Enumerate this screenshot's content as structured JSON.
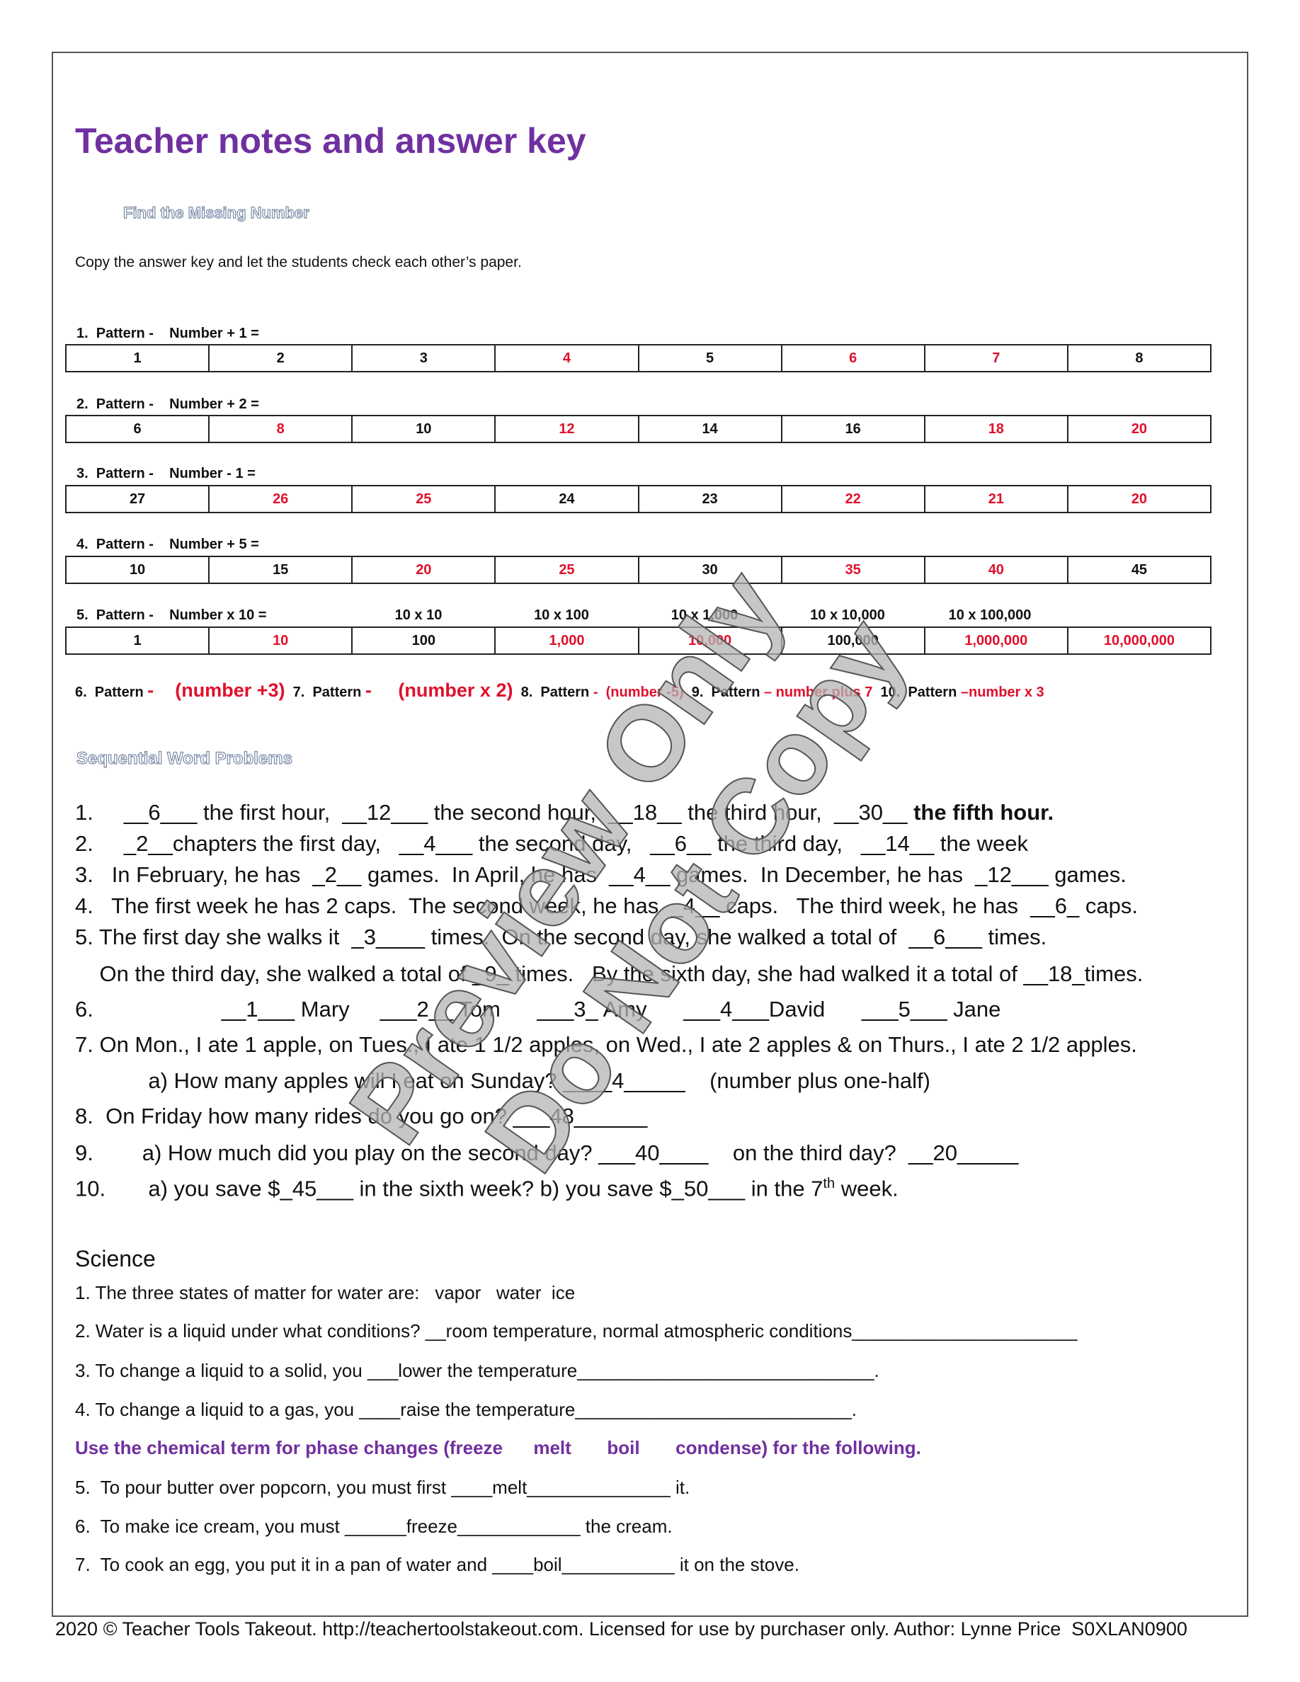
{
  "title": "Teacher notes and answer key",
  "subtitle": "Find the Missing Number",
  "instructions": "Copy the answer key and let the students check each other’s paper.",
  "patterns": [
    {
      "label": "1.  Pattern -    Number + 1 =",
      "cells": [
        {
          "v": "1"
        },
        {
          "v": "2"
        },
        {
          "v": "3"
        },
        {
          "v": "4",
          "red": true
        },
        {
          "v": "5"
        },
        {
          "v": "6",
          "red": true
        },
        {
          "v": "7",
          "red": true
        },
        {
          "v": "8"
        }
      ]
    },
    {
      "label": "2.  Pattern -    Number + 2 =",
      "cells": [
        {
          "v": "6"
        },
        {
          "v": "8",
          "red": true
        },
        {
          "v": "10"
        },
        {
          "v": "12",
          "red": true
        },
        {
          "v": "14"
        },
        {
          "v": "16"
        },
        {
          "v": "18",
          "red": true
        },
        {
          "v": "20",
          "red": true
        }
      ]
    },
    {
      "label": "3.  Pattern -    Number - 1 =",
      "cells": [
        {
          "v": "27"
        },
        {
          "v": "26",
          "red": true
        },
        {
          "v": "25",
          "red": true
        },
        {
          "v": "24"
        },
        {
          "v": "23"
        },
        {
          "v": "22",
          "red": true
        },
        {
          "v": "21",
          "red": true
        },
        {
          "v": "20",
          "red": true
        }
      ]
    },
    {
      "label": "4.  Pattern -    Number + 5 =",
      "cells": [
        {
          "v": "10"
        },
        {
          "v": "15"
        },
        {
          "v": "20",
          "red": true
        },
        {
          "v": "25",
          "red": true
        },
        {
          "v": "30"
        },
        {
          "v": "35",
          "red": true
        },
        {
          "v": "40",
          "red": true
        },
        {
          "v": "45"
        }
      ]
    },
    {
      "label": "5.  Pattern -    Number x 10 =",
      "cells": [
        {
          "v": "1"
        },
        {
          "v": "10",
          "red": true
        },
        {
          "v": "100"
        },
        {
          "v": "1,000",
          "red": true
        },
        {
          "v": "10,000",
          "red": true
        },
        {
          "v": "100,000"
        },
        {
          "v": "1,000,000",
          "red": true
        },
        {
          "v": "10,000,000",
          "red": true
        }
      ],
      "multipliers": [
        "10 x 10",
        "10 x 100",
        "10 x 1,000",
        "10 x 10,000",
        "10 x 100,000"
      ]
    }
  ],
  "pattern_answers": [
    {
      "label": "6.  Pattern ",
      "answer": "-    (number +3)"
    },
    {
      "label": "7.  Pattern ",
      "answer": "-     (number x 2)"
    },
    {
      "label": "8.  Pattern ",
      "answer": "-  (number -5)"
    },
    {
      "label": "9.  Pattern ",
      "answer": "– number plus 7"
    },
    {
      "label": "10.  Pattern ",
      "answer": "–number x 3"
    }
  ],
  "section_word_problems": "Sequential Word Problems",
  "word_problems": [
    [
      {
        "t": "1.     __6___ the first hour,  __12___ the second hour,  __18__ the third hour,  __30__ "
      },
      {
        "t": "the fifth hour.",
        "b": true
      }
    ],
    [
      {
        "t": "2.     _2__chapters the first day,   __4___ the second day,   __6__ the third day,   __14__ the week"
      }
    ],
    [
      {
        "t": "3.   In February, he has  _2__ games.  In April, he has  __4__ games.  In December, he has  _12___ games."
      }
    ],
    [
      {
        "t": "4.   The first week he has 2 caps.  The second week, he has  _4__ caps.   The third week, he has  __6_ caps."
      }
    ],
    [
      {
        "t": "5. The first day she walks it  _3____ times.  On the second day, she walked a total of  __6___ times."
      }
    ],
    [
      {
        "t": "    On the third day, she walked a total of _9_ times.   By the sixth day, she had walked it a total of __18_times."
      }
    ],
    [
      {
        "t": "6.                     __1___ Mary     ___2__ Tom      ___3_ Amy      ___4___David      ___5___ Jane"
      }
    ],
    [
      {
        "t": "7. On Mon., I ate 1 apple, on Tues., I ate 1 1/2 apples, on Wed., I ate 2 apples & on Thurs., I ate 2 1/2 apples."
      }
    ],
    [
      {
        "t": "            a) How many apples will I eat on Sunday? ____4_____    (number plus one-half)"
      }
    ],
    [
      {
        "t": "8.  On Friday how many rides do you go on? ___48______"
      }
    ],
    [
      {
        "t": "9.        a) How much did you play on the second day? ___40____    on the third day?  __20_____"
      }
    ],
    [
      {
        "t": "10.       a) you save $_45___ in the sixth week? b) you save $_50___ in the 7"
      },
      {
        "t": "th",
        "sup": true
      },
      {
        "t": " week."
      }
    ]
  ],
  "science_heading": "Science",
  "science": [
    {
      "t": "1. The three states of matter for water are:   vapor   water  ice"
    },
    {
      "t": "2. Water is a liquid under what conditions? __room temperature, normal atmospheric conditions______________________"
    },
    {
      "t": "3. To change a liquid to a solid, you ___lower the temperature_____________________________."
    },
    {
      "t": "4. To change a liquid to a gas, you ____raise the temperature___________________________."
    },
    {
      "t": "Use the chemical term for phase changes (freeze      melt       boil       condense) for the following.",
      "purple": true
    },
    {
      "t": "5.  To pour butter over popcorn, you must first ____melt______________ it."
    },
    {
      "t": "6.  To make ice cream, you must ______freeze____________ the cream."
    },
    {
      "t": "7.  To cook an egg, you put it in a pan of water and ____boil___________ it on the stove."
    }
  ],
  "footer": "2020 © Teacher Tools Takeout. http://teachertoolstakeout.com. Licensed for use by purchaser only. Author: Lynne Price  S0XLAN0900",
  "watermark": [
    "Preview Only",
    "Do Not Copy"
  ],
  "colors": {
    "title": "#7030a0",
    "answer_red": "#e0102c",
    "watermark": "#9a9a9a"
  }
}
